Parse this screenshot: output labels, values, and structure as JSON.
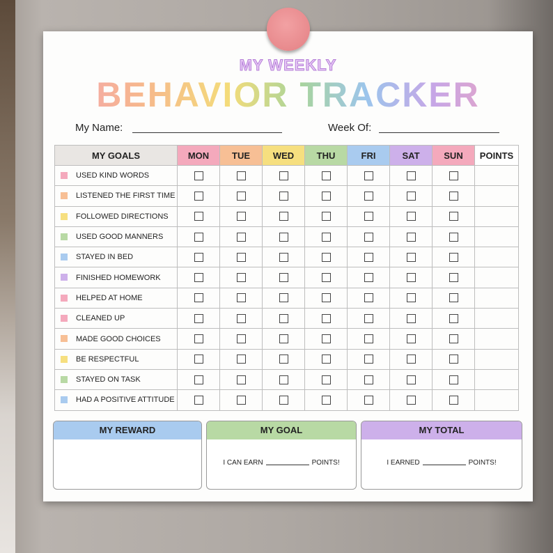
{
  "header": {
    "subtitle": "MY WEEKLY",
    "title": "BEHAVIOR TRACKER"
  },
  "fields": {
    "name": "My Name:",
    "week": "Week Of:"
  },
  "table": {
    "columns": [
      {
        "label": "MY GOALS",
        "color": "#e9e6e3"
      },
      {
        "label": "MON",
        "color": "#f4a9bc"
      },
      {
        "label": "TUE",
        "color": "#f7bf95"
      },
      {
        "label": "WED",
        "color": "#f6df7f"
      },
      {
        "label": "THU",
        "color": "#b8d9a4"
      },
      {
        "label": "FRI",
        "color": "#a9cbef"
      },
      {
        "label": "SAT",
        "color": "#cdb0ea"
      },
      {
        "label": "SUN",
        "color": "#f4a9bc"
      },
      {
        "label": "POINTS",
        "color": "#ffffff"
      }
    ],
    "rows": [
      {
        "label": "USED KIND WORDS",
        "color": "#f4a9bc"
      },
      {
        "label": "LISTENED THE FIRST TIME",
        "color": "#f7bf95"
      },
      {
        "label": "FOLLOWED DIRECTIONS",
        "color": "#f6df7f"
      },
      {
        "label": "USED GOOD MANNERS",
        "color": "#b8d9a4"
      },
      {
        "label": "STAYED IN BED",
        "color": "#a9cbef"
      },
      {
        "label": "FINISHED HOMEWORK",
        "color": "#cdb0ea"
      },
      {
        "label": "HELPED AT HOME",
        "color": "#f4a9bc"
      },
      {
        "label": "CLEANED UP",
        "color": "#f4a9bc"
      },
      {
        "label": "MADE GOOD CHOICES",
        "color": "#f7bf95"
      },
      {
        "label": "BE RESPECTFUL",
        "color": "#f6df7f"
      },
      {
        "label": "STAYED ON TASK",
        "color": "#b8d9a4"
      },
      {
        "label": "HAD A POSITIVE ATTITUDE",
        "color": "#a9cbef"
      }
    ]
  },
  "boxes": [
    {
      "title": "MY REWARD",
      "color": "#a9cbef"
    },
    {
      "title": "MY GOAL",
      "color": "#b8d9a4",
      "before": "I CAN EARN",
      "after": "POINTS!"
    },
    {
      "title": "MY TOTAL",
      "color": "#cdb0ea",
      "before": "I EARNED",
      "after": "POINTS!"
    }
  ]
}
